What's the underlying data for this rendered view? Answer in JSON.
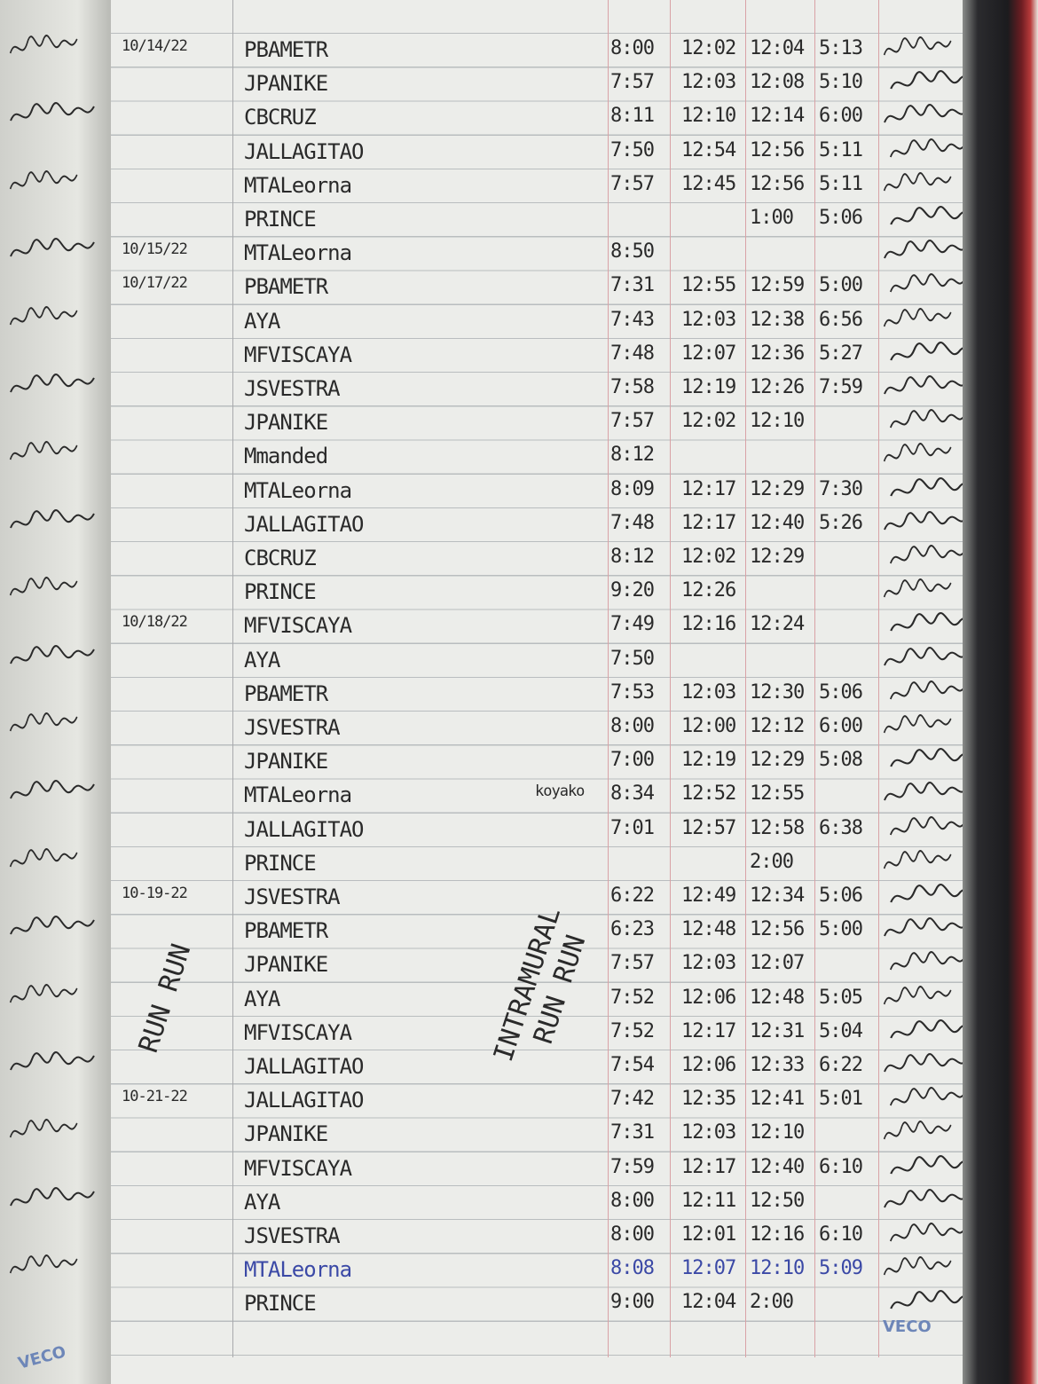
{
  "logbook": {
    "rows": [
      {
        "date": "10/14/22",
        "name": "PBAMETR",
        "times": [
          "8:00",
          "12:02",
          "12:04",
          "5:13"
        ]
      },
      {
        "date": "",
        "name": "JPANIKE",
        "times": [
          "7:57",
          "12:03",
          "12:08",
          "5:10"
        ]
      },
      {
        "date": "",
        "name": "CBCRUZ",
        "times": [
          "8:11",
          "12:10",
          "12:14",
          "6:00"
        ]
      },
      {
        "date": "",
        "name": "JALLAGITAO",
        "times": [
          "7:50",
          "12:54",
          "12:56",
          "5:11"
        ]
      },
      {
        "date": "",
        "name": "MTALeorna",
        "times": [
          "7:57",
          "12:45",
          "12:56",
          "5:11"
        ]
      },
      {
        "date": "",
        "name": "PRINCE",
        "times": [
          "",
          "",
          "1:00",
          "5:06"
        ]
      },
      {
        "date": "10/15/22",
        "name": "MTALeorna",
        "times": [
          "8:50",
          "",
          "",
          ""
        ]
      },
      {
        "date": "10/17/22",
        "name": "PBAMETR",
        "times": [
          "7:31",
          "12:55",
          "12:59",
          "5:00"
        ]
      },
      {
        "date": "",
        "name": "AYA",
        "times": [
          "7:43",
          "12:03",
          "12:38",
          "6:56"
        ]
      },
      {
        "date": "",
        "name": "MFVISCAYA",
        "times": [
          "7:48",
          "12:07",
          "12:36",
          "5:27"
        ]
      },
      {
        "date": "",
        "name": "JSVESTRA",
        "times": [
          "7:58",
          "12:19",
          "12:26",
          "7:59"
        ]
      },
      {
        "date": "",
        "name": "JPANIKE",
        "times": [
          "7:57",
          "12:02",
          "12:10",
          ""
        ]
      },
      {
        "date": "",
        "name": "Mmanded",
        "times": [
          "8:12",
          "",
          "",
          ""
        ]
      },
      {
        "date": "",
        "name": "MTALeorna",
        "times": [
          "8:09",
          "12:17",
          "12:29",
          "7:30"
        ]
      },
      {
        "date": "",
        "name": "JALLAGITAO",
        "times": [
          "7:48",
          "12:17",
          "12:40",
          "5:26"
        ]
      },
      {
        "date": "",
        "name": "CBCRUZ",
        "times": [
          "8:12",
          "12:02",
          "12:29",
          ""
        ]
      },
      {
        "date": "",
        "name": "PRINCE",
        "times": [
          "9:20",
          "12:26",
          "",
          ""
        ]
      },
      {
        "date": "10/18/22",
        "name": "MFVISCAYA",
        "times": [
          "7:49",
          "12:16",
          "12:24",
          ""
        ]
      },
      {
        "date": "",
        "name": "AYA",
        "times": [
          "7:50",
          "",
          "",
          ""
        ]
      },
      {
        "date": "",
        "name": "PBAMETR",
        "times": [
          "7:53",
          "12:03",
          "12:30",
          "5:06"
        ]
      },
      {
        "date": "",
        "name": "JSVESTRA",
        "times": [
          "8:00",
          "12:00",
          "12:12",
          "6:00"
        ]
      },
      {
        "date": "",
        "name": "JPANIKE",
        "times": [
          "7:00",
          "12:19",
          "12:29",
          "5:08"
        ]
      },
      {
        "date": "",
        "name": "MTALeorna",
        "note": "koyako",
        "times": [
          "8:34",
          "12:52",
          "12:55",
          ""
        ]
      },
      {
        "date": "",
        "name": "JALLAGITAO",
        "times": [
          "7:01",
          "12:57",
          "12:58",
          "6:38"
        ]
      },
      {
        "date": "",
        "name": "PRINCE",
        "times": [
          "",
          "",
          "2:00",
          ""
        ]
      },
      {
        "date": "10-19-22",
        "name": "JSVESTRA",
        "times": [
          "6:22",
          "12:49",
          "12:34",
          "5:06"
        ]
      },
      {
        "date": "",
        "name": "PBAMETR",
        "times": [
          "6:23",
          "12:48",
          "12:56",
          "5:00"
        ]
      },
      {
        "date": "",
        "name": "JPANIKE",
        "times": [
          "7:57",
          "12:03",
          "12:07",
          ""
        ]
      },
      {
        "date": "",
        "name": "AYA",
        "times": [
          "7:52",
          "12:06",
          "12:48",
          "5:05"
        ]
      },
      {
        "date": "",
        "name": "MFVISCAYA",
        "times": [
          "7:52",
          "12:17",
          "12:31",
          "5:04"
        ]
      },
      {
        "date": "",
        "name": "JALLAGITAO",
        "times": [
          "7:54",
          "12:06",
          "12:33",
          "6:22"
        ]
      },
      {
        "date": "10-21-22",
        "name": "JALLAGITAO",
        "times": [
          "7:42",
          "12:35",
          "12:41",
          "5:01"
        ]
      },
      {
        "date": "",
        "name": "JPANIKE",
        "times": [
          "7:31",
          "12:03",
          "12:10",
          ""
        ]
      },
      {
        "date": "",
        "name": "MFVISCAYA",
        "times": [
          "7:59",
          "12:17",
          "12:40",
          "6:10"
        ]
      },
      {
        "date": "",
        "name": "AYA",
        "times": [
          "8:00",
          "12:11",
          "12:50",
          ""
        ]
      },
      {
        "date": "",
        "name": "JSVESTRA",
        "times": [
          "8:00",
          "12:01",
          "12:16",
          "6:10"
        ]
      },
      {
        "date": "",
        "name": "MTALeorna",
        "ink": "blue",
        "times": [
          "8:08",
          "12:07",
          "12:10",
          "5:09"
        ]
      },
      {
        "date": "",
        "name": "PRINCE",
        "times": [
          "9:00",
          "12:04",
          "2:00",
          ""
        ]
      }
    ],
    "margin_notes": {
      "run_run": "RUN RUN",
      "intramural": "INTRAMURAL",
      "intramural_run": "RUN RUN"
    },
    "brand": "VECO",
    "colors": {
      "ink": "#2a2a2a",
      "blue_ink": "#3b49a6",
      "margin_line": "#d9a2a6"
    }
  }
}
